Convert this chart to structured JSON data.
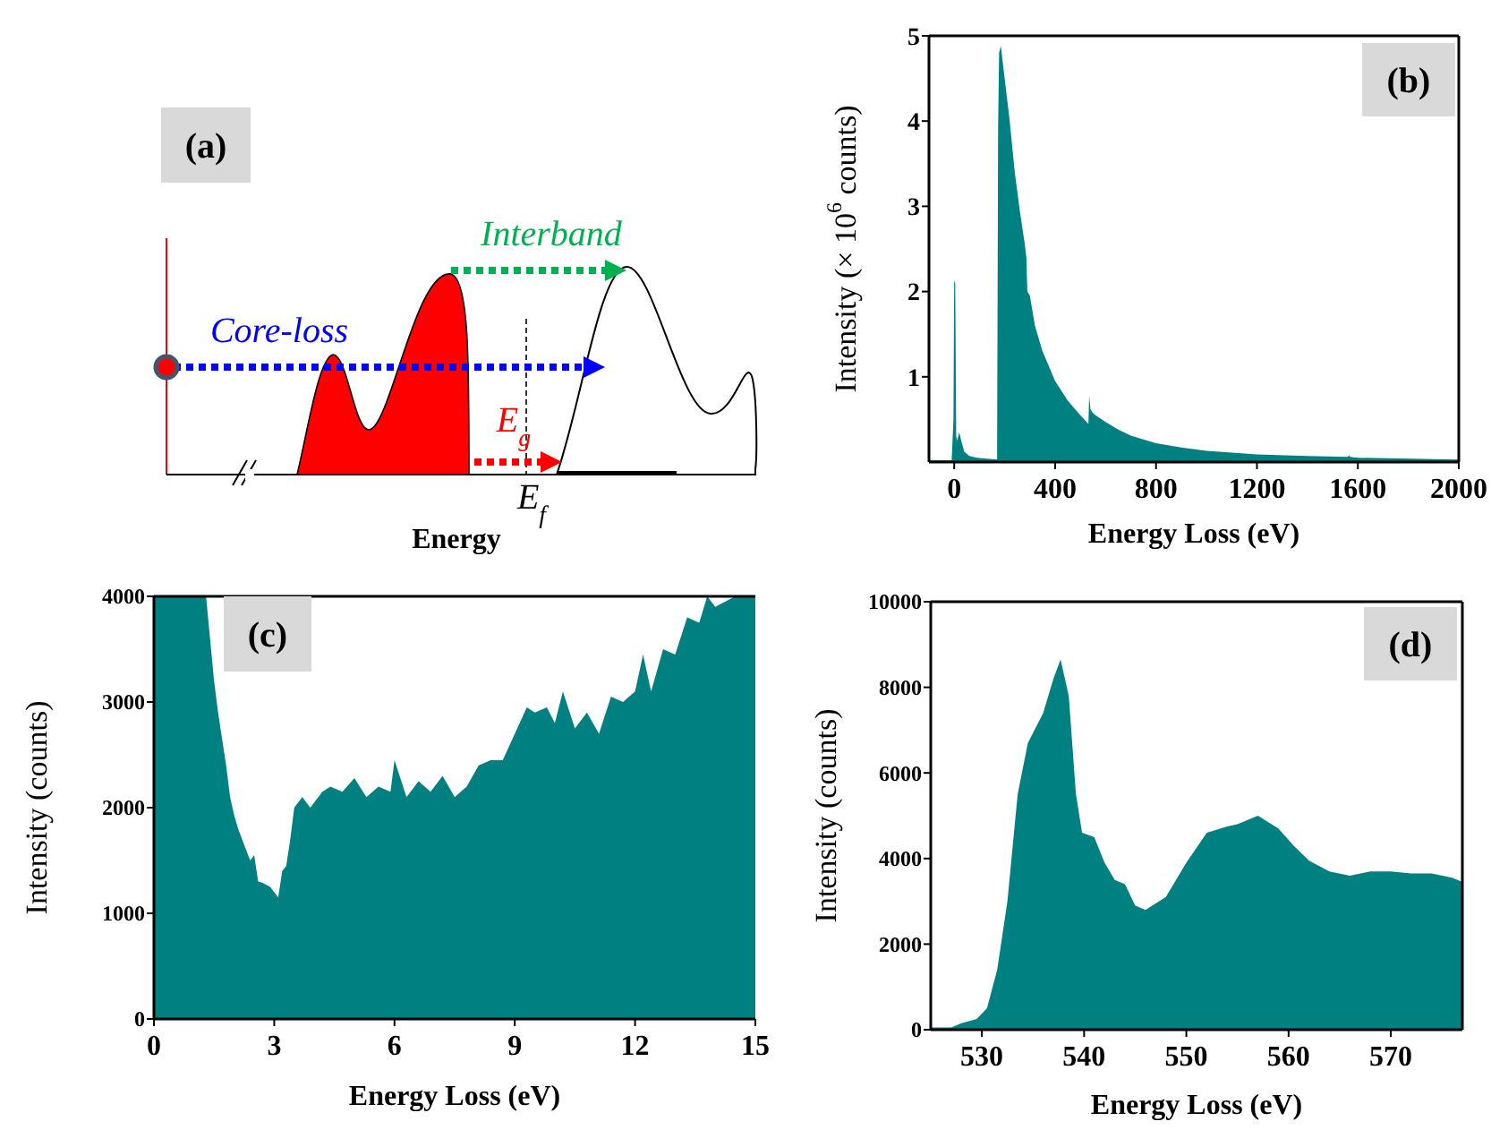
{
  "chart_data": [
    {
      "type": "other",
      "xlabel": "Energy",
      "annotations": [
        "(a)",
        "Interband",
        "Core-loss",
        "E$_{g}$",
        "E$_{f}$"
      ]
    },
    {
      "type": "area",
      "xlabel": "Energy Loss (eV)",
      "ylabel": "Intensity (× 10$^{6}$ counts)",
      "annotations": [
        "(b)"
      ],
      "xlim": [
        -100,
        2000
      ],
      "ylim": [
        0,
        5
      ],
      "xticks": [
        0,
        400,
        800,
        1200,
        1600,
        2000
      ],
      "yticks": [
        1,
        2,
        3,
        4,
        5
      ],
      "x": [
        -100,
        -10,
        -3,
        0,
        4,
        8,
        12,
        20,
        28,
        40,
        60,
        90,
        170,
        174,
        178,
        185,
        192,
        200,
        220,
        240,
        260,
        280,
        286,
        290,
        300,
        320,
        350,
        400,
        450,
        500,
        528,
        532,
        535,
        540,
        548,
        560,
        600,
        650,
        700,
        800,
        900,
        1000,
        1200,
        1400,
        1560,
        1565,
        1570,
        1600,
        2000
      ],
      "series": [
        {
          "color": "#008080",
          "values": [
            0.02,
            0.02,
            0.5,
            2.13,
            2.1,
            0.3,
            0.25,
            0.35,
            0.25,
            0.12,
            0.07,
            0.05,
            0.03,
            3.9,
            4.8,
            4.88,
            4.7,
            4.5,
            4.0,
            3.4,
            2.95,
            2.55,
            2.4,
            2.0,
            1.95,
            1.6,
            1.3,
            0.95,
            0.72,
            0.55,
            0.46,
            0.45,
            0.78,
            0.62,
            0.58,
            0.55,
            0.47,
            0.38,
            0.31,
            0.22,
            0.17,
            0.13,
            0.09,
            0.07,
            0.06,
            0.08,
            0.06,
            0.05,
            0.03
          ]
        }
      ]
    },
    {
      "type": "area",
      "xlabel": "Energy Loss (eV)",
      "ylabel": "Intensity (counts)",
      "annotations": [
        "(c)"
      ],
      "xlim": [
        0,
        15
      ],
      "ylim": [
        0,
        4000
      ],
      "xticks": [
        0,
        3,
        6,
        9,
        12,
        15
      ],
      "yticks": [
        0,
        1000,
        2000,
        3000,
        4000
      ],
      "x": [
        0,
        1.3,
        1.4,
        1.5,
        1.6,
        1.8,
        1.9,
        2.0,
        2.1,
        2.2,
        2.4,
        2.5,
        2.6,
        2.7,
        2.9,
        3.0,
        3.1,
        3.2,
        3.3,
        3.4,
        3.5,
        3.7,
        3.9,
        4.2,
        4.4,
        4.7,
        5.0,
        5.3,
        5.6,
        5.9,
        6.0,
        6.3,
        6.6,
        6.9,
        7.2,
        7.5,
        7.8,
        8.1,
        8.4,
        8.7,
        9.0,
        9.3,
        9.5,
        9.8,
        10.0,
        10.2,
        10.5,
        10.8,
        11.1,
        11.4,
        11.7,
        12.0,
        12.2,
        12.4,
        12.7,
        13.0,
        13.3,
        13.6,
        13.8,
        14.0,
        14.5,
        15
      ],
      "series": [
        {
          "color": "#008080",
          "values": [
            4000,
            4000,
            3600,
            3200,
            2900,
            2400,
            2100,
            1930,
            1800,
            1700,
            1500,
            1550,
            1300,
            1290,
            1250,
            1200,
            1150,
            1400,
            1450,
            1700,
            2000,
            2100,
            2000,
            2150,
            2200,
            2150,
            2280,
            2100,
            2200,
            2150,
            2450,
            2100,
            2250,
            2150,
            2300,
            2100,
            2200,
            2400,
            2450,
            2450,
            2700,
            2950,
            2900,
            2950,
            2800,
            3100,
            2750,
            2900,
            2700,
            3050,
            3000,
            3100,
            3450,
            3100,
            3500,
            3450,
            3800,
            3750,
            4000,
            3900,
            4000,
            4000
          ]
        }
      ]
    },
    {
      "type": "area",
      "xlabel": "Energy Loss (eV)",
      "ylabel": "Intensity (counts)",
      "annotations": [
        "(d)"
      ],
      "xlim": [
        525,
        577
      ],
      "ylim": [
        0,
        10000
      ],
      "xticks": [
        530,
        540,
        550,
        560,
        570
      ],
      "yticks": [
        0,
        2000,
        4000,
        6000,
        8000,
        10000
      ],
      "x": [
        525,
        527,
        528,
        529.5,
        530.5,
        531.5,
        532.5,
        533.5,
        534.5,
        536,
        537,
        537.7,
        538.5,
        539.2,
        539.8,
        541,
        542,
        543,
        544,
        545,
        546,
        548,
        550,
        552,
        554,
        555,
        557,
        559,
        560.5,
        562,
        564,
        566,
        568,
        570,
        572,
        574,
        576,
        577
      ],
      "series": [
        {
          "color": "#008080",
          "values": [
            50,
            50,
            150,
            250,
            500,
            1400,
            3000,
            5500,
            6700,
            7400,
            8200,
            8650,
            7800,
            5500,
            4600,
            4500,
            3900,
            3500,
            3400,
            2900,
            2800,
            3100,
            3900,
            4600,
            4750,
            4800,
            5000,
            4700,
            4300,
            3950,
            3700,
            3600,
            3700,
            3700,
            3650,
            3650,
            3550,
            3450
          ]
        }
      ]
    }
  ]
}
